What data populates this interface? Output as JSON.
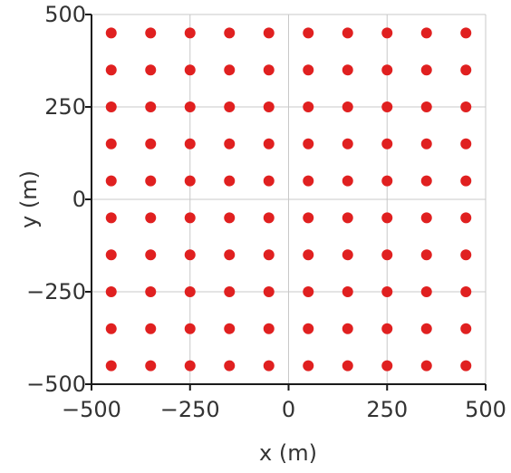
{
  "chart_data": {
    "type": "scatter",
    "title": "",
    "xlabel": "x (m)",
    "ylabel": "y (m)",
    "xlim": [
      -500,
      500
    ],
    "ylim": [
      -500,
      500
    ],
    "xticks": [
      -500,
      -250,
      0,
      250,
      500
    ],
    "yticks": [
      -500,
      -250,
      0,
      250,
      500
    ],
    "xtick_labels": [
      "−500",
      "−250",
      "0",
      "250",
      "500"
    ],
    "ytick_labels": [
      "−500",
      "−250",
      "0",
      "250",
      "500"
    ],
    "grid": true,
    "marker_color": "#e02020",
    "grid_x_values": [
      -450,
      -350,
      -250,
      -150,
      -50,
      50,
      150,
      250,
      350,
      450
    ],
    "grid_y_values": [
      -450,
      -350,
      -250,
      -150,
      -50,
      50,
      150,
      250,
      350,
      450
    ]
  }
}
